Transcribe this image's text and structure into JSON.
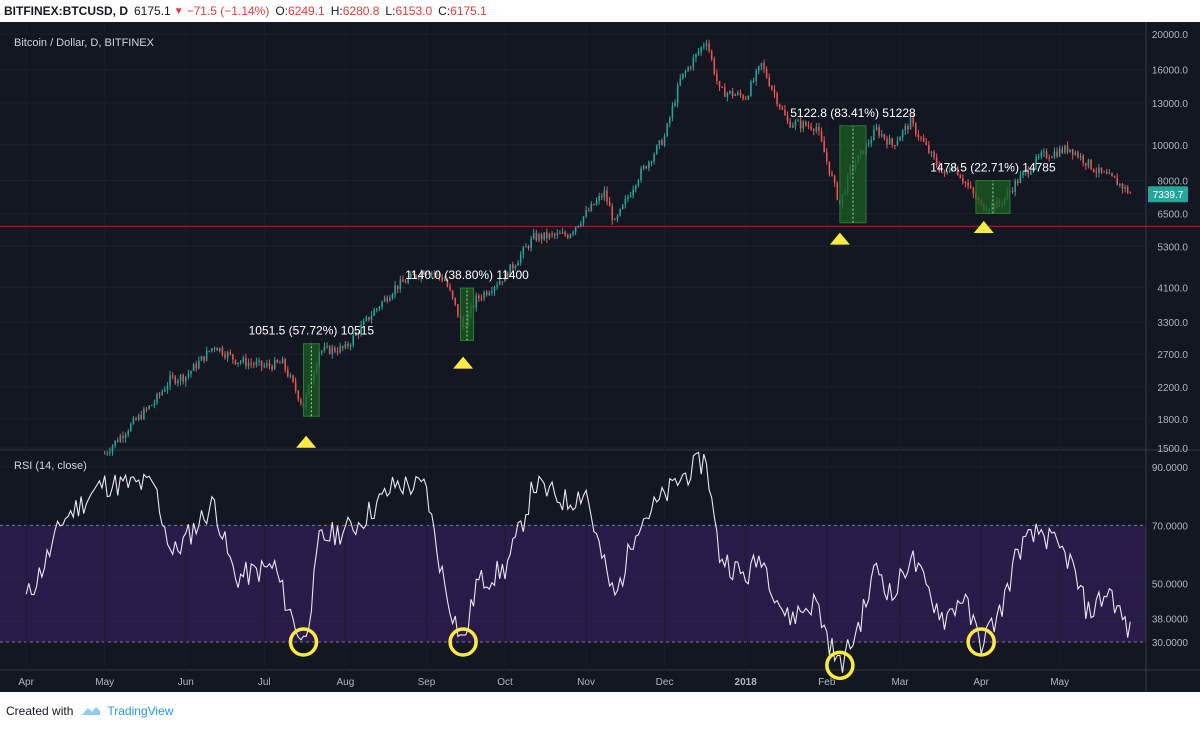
{
  "header": {
    "symbol": "BITFINEX:BTCUSD, D",
    "last": "6175.1",
    "change": "−71.5 (−1.14%)",
    "open_label": "O:",
    "open": "6249.1",
    "high_label": "H:",
    "high": "6280.8",
    "low_label": "L:",
    "low": "6153.0",
    "close_label": "C:",
    "close": "6175.1"
  },
  "footer": {
    "created_with": "Created with",
    "brand": "TradingView"
  },
  "colors": {
    "background": "#131722",
    "up": "#26a69a",
    "down": "#ef5350",
    "rsi_band": "#2a1c4a",
    "marker": "#ffeb3b",
    "measure_box": "#1b5e20",
    "price_label": "#26a69a",
    "hline": "#b71c1c"
  },
  "chart_data": [
    {
      "type": "candlestick",
      "title": "Bitcoin / Dollar, D, BITFINEX",
      "y_scale": "log",
      "y_ticks": [
        1500,
        1800,
        2200,
        2700,
        3300,
        4100,
        5300,
        6500,
        8000,
        10000,
        13000,
        16000,
        20000
      ],
      "y_tick_labels": [
        "1500.0",
        "1800.0",
        "2200.0",
        "2700.0",
        "3300.0",
        "4100.0",
        "5300.0",
        "6500.0",
        "8000.0",
        "10000.0",
        "13000.0",
        "16000.0",
        "20000.0"
      ],
      "last_price_label": "7339.7",
      "horizontal_line": 6000,
      "x_labels": [
        "Apr",
        "May",
        "Jun",
        "Jul",
        "Aug",
        "Sep",
        "Oct",
        "Nov",
        "Dec",
        "2018",
        "Feb",
        "Mar",
        "Apr",
        "May"
      ],
      "x_label_dates": [
        "2017-04-01",
        "2017-05-01",
        "2017-06-01",
        "2017-07-01",
        "2017-08-01",
        "2017-09-01",
        "2017-10-01",
        "2017-11-01",
        "2017-12-01",
        "2018-01-01",
        "2018-02-01",
        "2018-03-01",
        "2018-04-01",
        "2018-05-01"
      ],
      "price_path": [
        {
          "date": "2017-05-01",
          "value": 1450
        },
        {
          "date": "2017-05-10",
          "value": 1700
        },
        {
          "date": "2017-05-20",
          "value": 2000
        },
        {
          "date": "2017-05-26",
          "value": 2300
        },
        {
          "date": "2017-06-01",
          "value": 2350
        },
        {
          "date": "2017-06-12",
          "value": 2850
        },
        {
          "date": "2017-06-20",
          "value": 2600
        },
        {
          "date": "2017-07-01",
          "value": 2500
        },
        {
          "date": "2017-07-08",
          "value": 2550
        },
        {
          "date": "2017-07-16",
          "value": 1950
        },
        {
          "date": "2017-07-22",
          "value": 2750
        },
        {
          "date": "2017-08-01",
          "value": 2800
        },
        {
          "date": "2017-08-10",
          "value": 3400
        },
        {
          "date": "2017-08-20",
          "value": 4100
        },
        {
          "date": "2017-09-01",
          "value": 4600
        },
        {
          "date": "2017-09-08",
          "value": 4300
        },
        {
          "date": "2017-09-15",
          "value": 3200
        },
        {
          "date": "2017-09-20",
          "value": 3800
        },
        {
          "date": "2017-10-01",
          "value": 4400
        },
        {
          "date": "2017-10-12",
          "value": 5600
        },
        {
          "date": "2017-10-25",
          "value": 5700
        },
        {
          "date": "2017-11-01",
          "value": 6500
        },
        {
          "date": "2017-11-08",
          "value": 7400
        },
        {
          "date": "2017-11-12",
          "value": 6100
        },
        {
          "date": "2017-11-20",
          "value": 8000
        },
        {
          "date": "2017-12-01",
          "value": 10500
        },
        {
          "date": "2017-12-07",
          "value": 15000
        },
        {
          "date": "2017-12-17",
          "value": 19300
        },
        {
          "date": "2017-12-22",
          "value": 14000
        },
        {
          "date": "2018-01-01",
          "value": 13500
        },
        {
          "date": "2018-01-07",
          "value": 16500
        },
        {
          "date": "2018-01-17",
          "value": 11500
        },
        {
          "date": "2018-01-28",
          "value": 11200
        },
        {
          "date": "2018-02-06",
          "value": 6900
        },
        {
          "date": "2018-02-10",
          "value": 8500
        },
        {
          "date": "2018-02-20",
          "value": 11000
        },
        {
          "date": "2018-02-26",
          "value": 10000
        },
        {
          "date": "2018-03-05",
          "value": 11500
        },
        {
          "date": "2018-03-18",
          "value": 8200
        },
        {
          "date": "2018-03-21",
          "value": 8900
        },
        {
          "date": "2018-04-01",
          "value": 6800
        },
        {
          "date": "2018-04-08",
          "value": 6900
        },
        {
          "date": "2018-04-15",
          "value": 8000
        },
        {
          "date": "2018-04-24",
          "value": 9300
        },
        {
          "date": "2018-05-05",
          "value": 9800
        },
        {
          "date": "2018-05-15",
          "value": 8500
        },
        {
          "date": "2018-05-22",
          "value": 8000
        },
        {
          "date": "2018-05-28",
          "value": 7400
        }
      ],
      "measurements": [
        {
          "label": "1051.5 (57.72%) 10515",
          "start": "2017-07-16",
          "end": "2017-07-22",
          "low": 1830,
          "high": 2880
        },
        {
          "label": "1140.0 (38.80%) 11400",
          "start": "2017-09-14",
          "end": "2017-09-19",
          "low": 2940,
          "high": 4080
        },
        {
          "label": "5122.8 (83.41%) 51228",
          "start": "2018-02-06",
          "end": "2018-02-16",
          "low": 6140,
          "high": 11260
        },
        {
          "label": "1478.5 (22.71%) 14785",
          "start": "2018-03-30",
          "end": "2018-04-12",
          "low": 6510,
          "high": 7990
        }
      ],
      "buy_markers": [
        {
          "date": "2017-07-17",
          "value": 1560
        },
        {
          "date": "2017-09-15",
          "value": 2560
        },
        {
          "date": "2018-02-06",
          "value": 5560
        },
        {
          "date": "2018-04-02",
          "value": 5980
        }
      ]
    },
    {
      "type": "line",
      "title": "RSI (14, close)",
      "y_ticks": [
        30,
        38,
        50,
        70,
        90
      ],
      "y_tick_labels": [
        "30.0000",
        "38.0000",
        "50.0000",
        "70.0000",
        "90.0000"
      ],
      "band": [
        30,
        70
      ],
      "rsi_path": [
        {
          "date": "2017-04-01",
          "value": 45
        },
        {
          "date": "2017-04-15",
          "value": 72
        },
        {
          "date": "2017-04-30",
          "value": 84
        },
        {
          "date": "2017-05-20",
          "value": 84
        },
        {
          "date": "2017-05-27",
          "value": 60
        },
        {
          "date": "2017-06-05",
          "value": 70
        },
        {
          "date": "2017-06-12",
          "value": 78
        },
        {
          "date": "2017-06-20",
          "value": 52
        },
        {
          "date": "2017-07-05",
          "value": 56
        },
        {
          "date": "2017-07-16",
          "value": 30
        },
        {
          "date": "2017-07-22",
          "value": 65
        },
        {
          "date": "2017-08-05",
          "value": 70
        },
        {
          "date": "2017-08-20",
          "value": 84
        },
        {
          "date": "2017-09-01",
          "value": 83
        },
        {
          "date": "2017-09-15",
          "value": 30
        },
        {
          "date": "2017-09-20",
          "value": 50
        },
        {
          "date": "2017-10-01",
          "value": 55
        },
        {
          "date": "2017-10-12",
          "value": 84
        },
        {
          "date": "2017-10-25",
          "value": 78
        },
        {
          "date": "2017-11-01",
          "value": 82
        },
        {
          "date": "2017-11-12",
          "value": 45
        },
        {
          "date": "2017-11-20",
          "value": 70
        },
        {
          "date": "2017-12-07",
          "value": 86
        },
        {
          "date": "2017-12-17",
          "value": 93
        },
        {
          "date": "2017-12-22",
          "value": 60
        },
        {
          "date": "2018-01-01",
          "value": 52
        },
        {
          "date": "2018-01-07",
          "value": 60
        },
        {
          "date": "2018-01-17",
          "value": 38
        },
        {
          "date": "2018-01-28",
          "value": 44
        },
        {
          "date": "2018-02-06",
          "value": 22
        },
        {
          "date": "2018-02-20",
          "value": 57
        },
        {
          "date": "2018-02-26",
          "value": 45
        },
        {
          "date": "2018-03-05",
          "value": 60
        },
        {
          "date": "2018-03-18",
          "value": 38
        },
        {
          "date": "2018-03-25",
          "value": 46
        },
        {
          "date": "2018-04-01",
          "value": 30
        },
        {
          "date": "2018-04-08",
          "value": 40
        },
        {
          "date": "2018-04-15",
          "value": 62
        },
        {
          "date": "2018-04-24",
          "value": 68
        },
        {
          "date": "2018-05-05",
          "value": 58
        },
        {
          "date": "2018-05-12",
          "value": 40
        },
        {
          "date": "2018-05-20",
          "value": 48
        },
        {
          "date": "2018-05-28",
          "value": 33
        }
      ],
      "circle_markers": [
        {
          "date": "2017-07-16",
          "value": 30
        },
        {
          "date": "2017-09-15",
          "value": 30
        },
        {
          "date": "2018-02-06",
          "value": 22
        },
        {
          "date": "2018-04-01",
          "value": 30
        }
      ]
    }
  ]
}
